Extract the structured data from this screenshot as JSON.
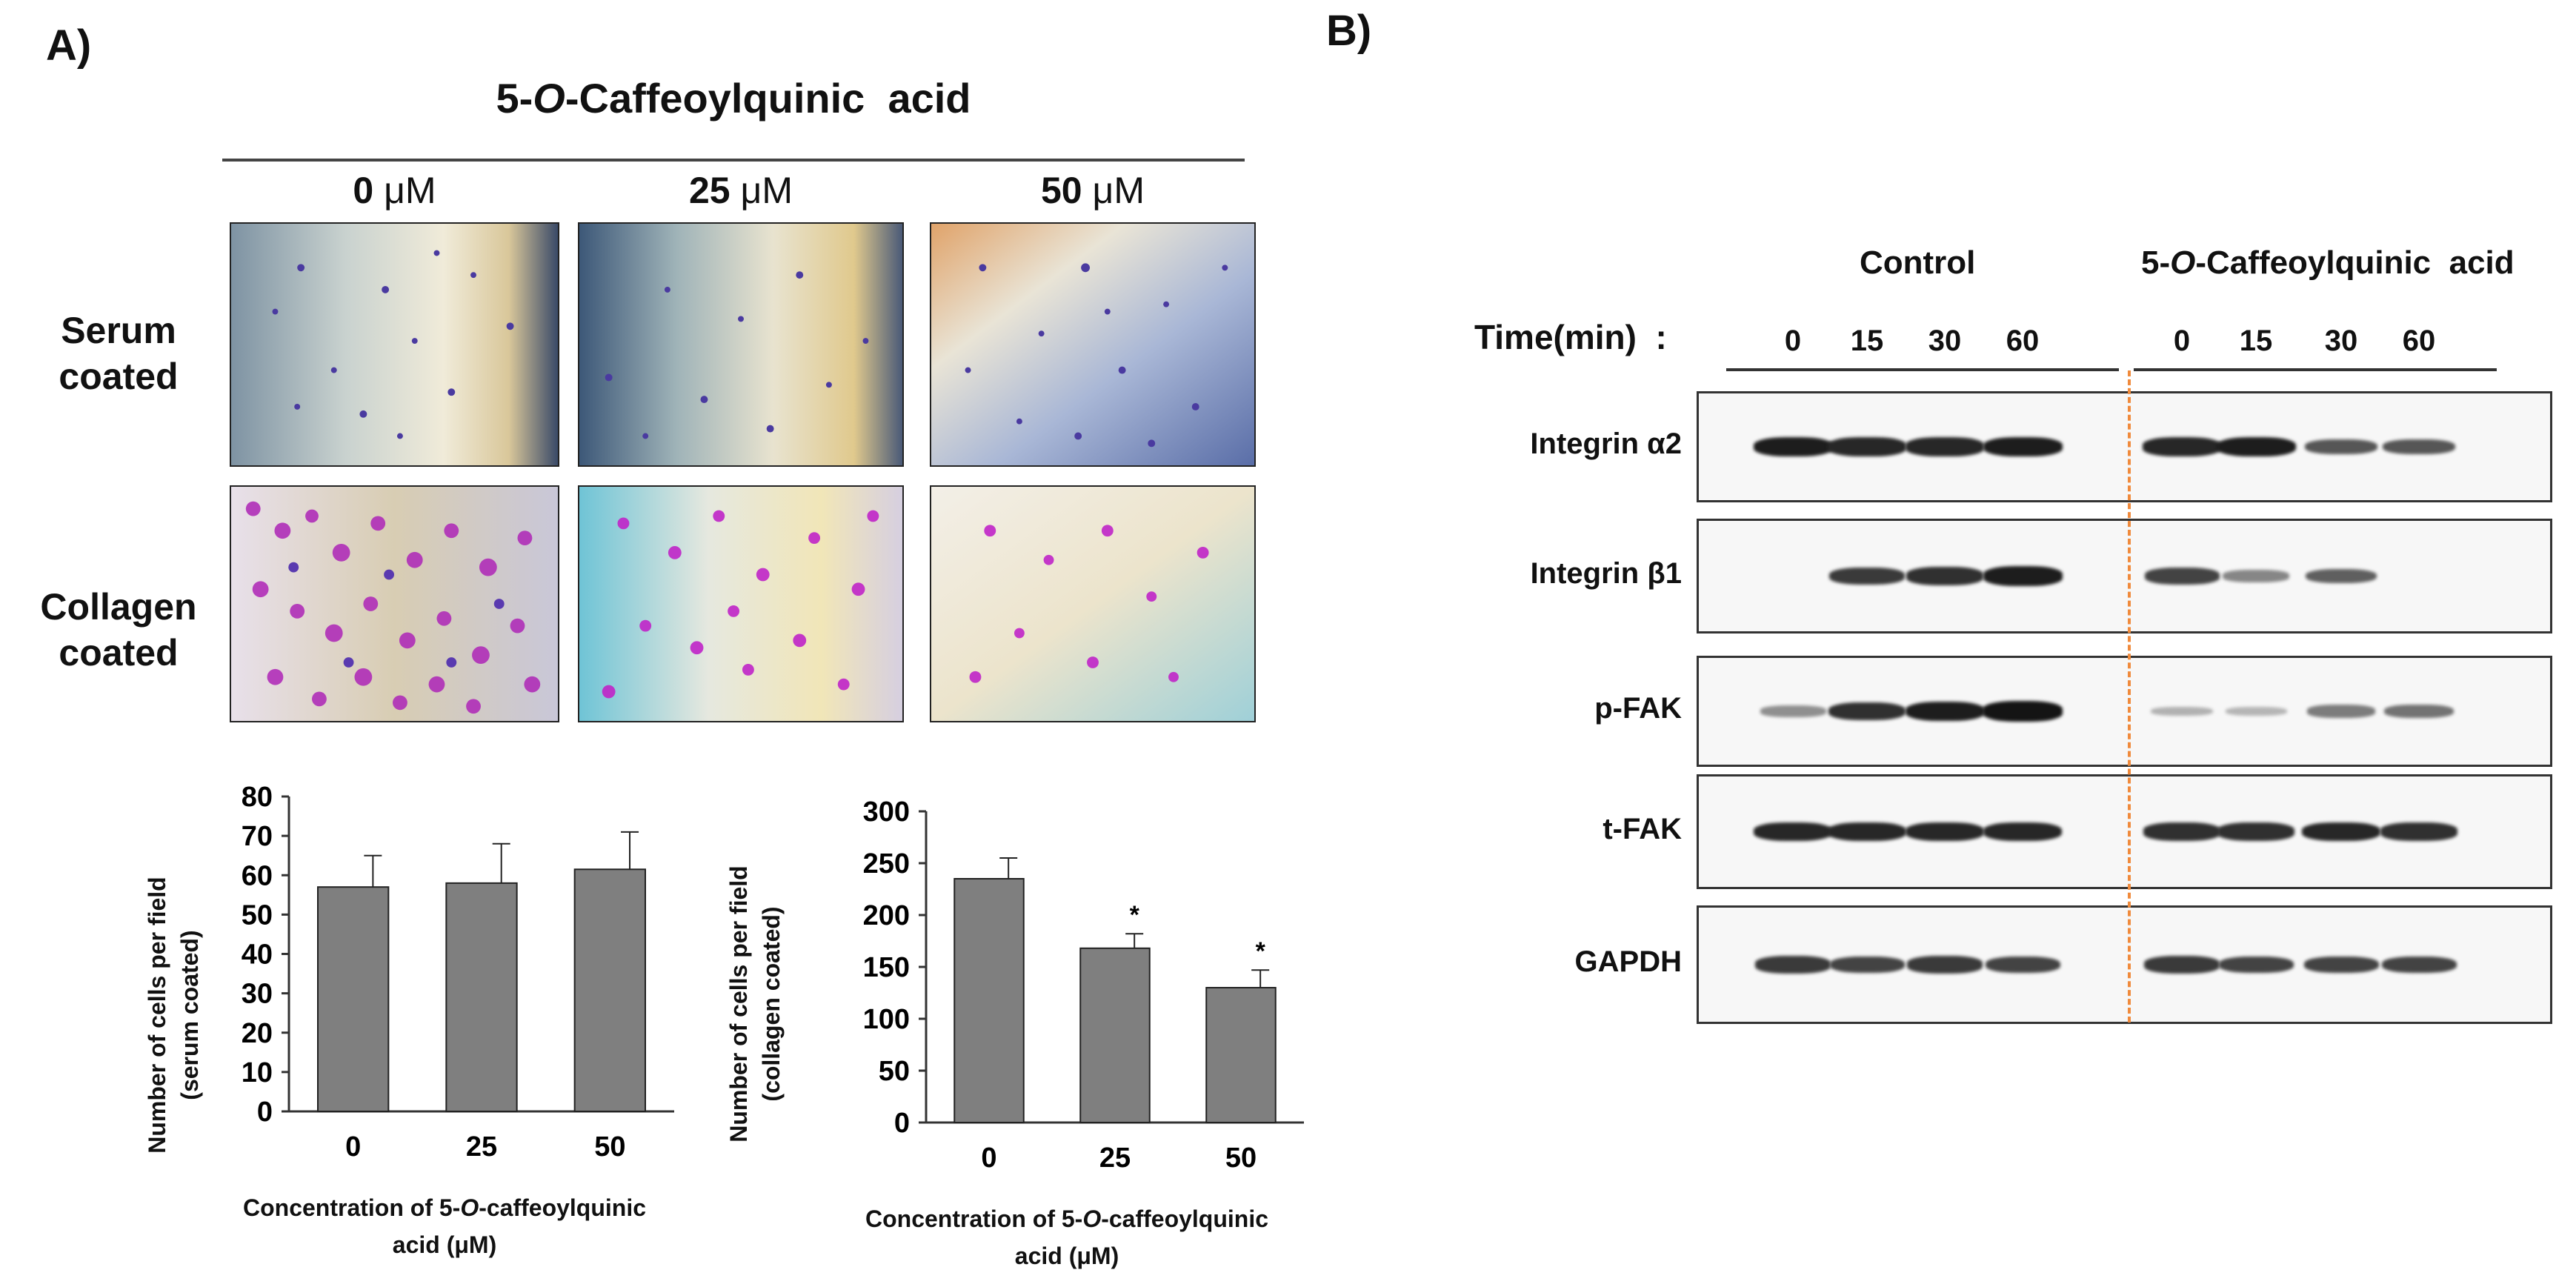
{
  "panel_a": {
    "label": "A)",
    "compound": {
      "prefix": "5-",
      "italic": "O",
      "suffix": "-Caffeoylquinic  acid"
    },
    "concentrations": [
      {
        "value": "0",
        "unit": "μM"
      },
      {
        "value": "25",
        "unit": "μM"
      },
      {
        "value": "50",
        "unit": "μM"
      }
    ],
    "row_labels": [
      {
        "line1": "Serum",
        "line2": "coated"
      },
      {
        "line1": "Collagen",
        "line2": "coated"
      }
    ],
    "micrographs": {
      "serum": [
        "serum-0uM-micrograph",
        "serum-25uM-micrograph",
        "serum-50uM-micrograph"
      ],
      "collagen": [
        "collagen-0uM-micrograph",
        "collagen-25uM-micrograph",
        "collagen-50uM-micrograph"
      ]
    }
  },
  "panel_b": {
    "label": "B)",
    "group_control": "Control",
    "group_treat": {
      "prefix": "5-",
      "italic": "O",
      "suffix": "-Caffeoylquinic  acid"
    },
    "time_label": "Time(min)  :",
    "time_points": [
      "0",
      "15",
      "30",
      "60",
      "0",
      "15",
      "30",
      "60"
    ],
    "blots": [
      {
        "name": "Integrin α2",
        "intensities": [
          0.9,
          0.85,
          0.85,
          0.9,
          0.85,
          0.9,
          0.6,
          0.6
        ]
      },
      {
        "name": "Integrin β1",
        "intensities": [
          0.0,
          0.75,
          0.8,
          0.9,
          0.7,
          0.35,
          0.55,
          0.0
        ]
      },
      {
        "name": "p-FAK",
        "intensities": [
          0.3,
          0.8,
          0.9,
          0.95,
          0.12,
          0.1,
          0.4,
          0.45
        ]
      },
      {
        "name": "t-FAK",
        "intensities": [
          0.85,
          0.85,
          0.85,
          0.85,
          0.8,
          0.8,
          0.85,
          0.8
        ]
      },
      {
        "name": "GAPDH",
        "intensities": [
          0.75,
          0.7,
          0.75,
          0.7,
          0.75,
          0.7,
          0.7,
          0.7
        ]
      }
    ]
  },
  "chart_data": [
    {
      "type": "bar",
      "categories": [
        "0",
        "25",
        "50"
      ],
      "values": [
        57,
        58,
        61.5
      ],
      "errors": [
        8,
        10,
        9.5
      ],
      "significance": [
        "",
        "",
        ""
      ],
      "ylim": [
        0,
        80
      ],
      "yticks": [
        "0",
        "10",
        "20",
        "30",
        "40",
        "50",
        "60",
        "70",
        "80"
      ],
      "ylabel_line1": "Number of cells per field",
      "ylabel_line2": "(serum coated)",
      "xlabel_line1": {
        "prefix": "Concentration of 5-",
        "italic": "O",
        "suffix": "-caffeoylquinic"
      },
      "xlabel_line2": "acid (μM)",
      "bar_color": "#7f7f7f",
      "grid": false
    },
    {
      "type": "bar",
      "categories": [
        "0",
        "25",
        "50"
      ],
      "values": [
        235,
        168,
        130
      ],
      "errors": [
        20,
        14,
        17
      ],
      "significance": [
        "",
        "*",
        "*"
      ],
      "ylim": [
        0,
        300
      ],
      "yticks": [
        "0",
        "50",
        "100",
        "150",
        "200",
        "250",
        "300"
      ],
      "ylabel_line1": "Number of cells per field",
      "ylabel_line2": "(collagen coated)",
      "xlabel_line1": {
        "prefix": "Concentration of 5-",
        "italic": "O",
        "suffix": "-caffeoylquinic"
      },
      "xlabel_line2": "acid (μM)",
      "bar_color": "#7f7f7f",
      "grid": false
    }
  ]
}
